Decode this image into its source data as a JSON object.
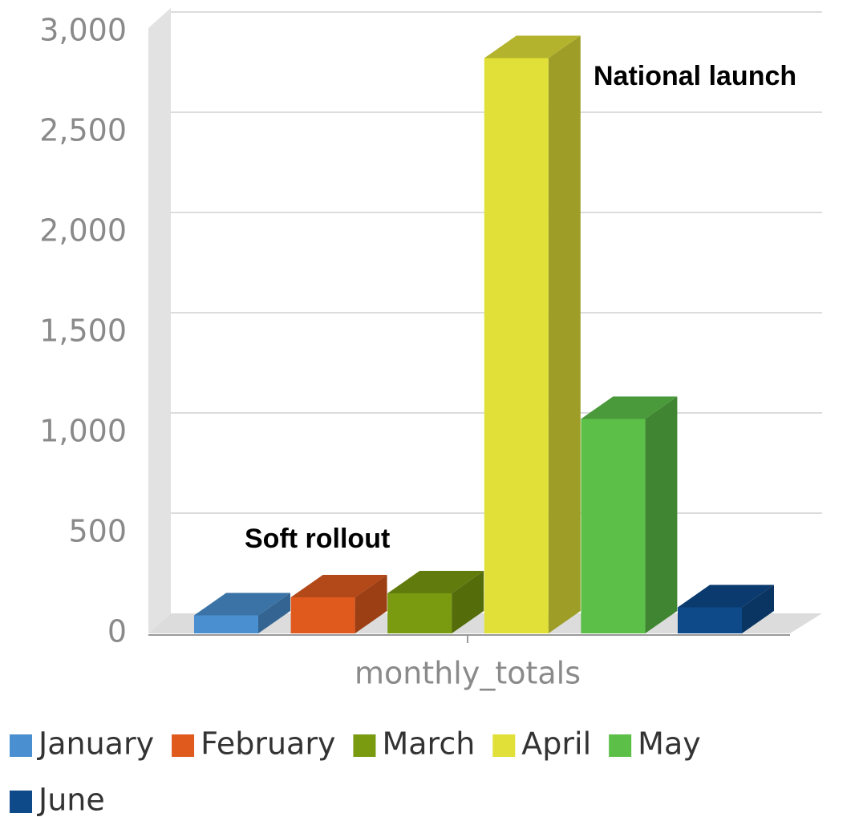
{
  "chart_data": {
    "type": "bar3d",
    "categories": [
      "monthly_totals"
    ],
    "series": [
      {
        "name": "January",
        "color": "#4a90d0",
        "values": [
          90
        ]
      },
      {
        "name": "February",
        "color": "#e05a1e",
        "values": [
          180
        ]
      },
      {
        "name": "March",
        "color": "#7a9a10",
        "values": [
          200
        ]
      },
      {
        "name": "April",
        "color": "#e0e038",
        "values": [
          2870
        ]
      },
      {
        "name": "May",
        "color": "#5cbf48",
        "values": [
          1070
        ]
      },
      {
        "name": "June",
        "color": "#0e4a8a",
        "values": [
          130
        ]
      }
    ],
    "annotations": [
      "Soft rollout",
      "National launch"
    ],
    "ylim": [
      0,
      3000
    ],
    "yticks": [
      0,
      500,
      {
        "value": 1000,
        "label": "1,000"
      },
      {
        "value": 1500,
        "label": "1,500"
      },
      {
        "value": 2000,
        "label": "2,000"
      },
      {
        "value": 2500,
        "label": "2,500"
      },
      {
        "value": 3000,
        "label": "3,000"
      }
    ],
    "grid": true,
    "legend": "bottom"
  }
}
